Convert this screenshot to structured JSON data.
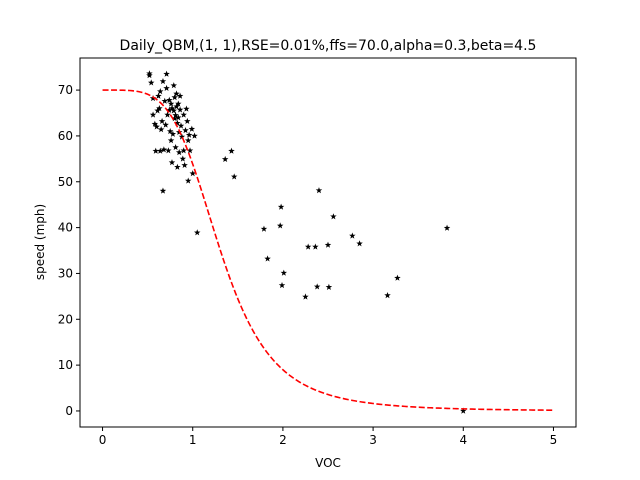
{
  "chart_data": {
    "type": "scatter",
    "title": "Daily_QBM,(1, 1),RSE=0.01%,ffs=70.0,alpha=0.3,beta=4.5",
    "xlabel": "VOC",
    "ylabel": "speed (mph)",
    "xlim": [
      -0.25,
      5.25
    ],
    "ylim": [
      -3.5,
      77.0
    ],
    "xticks": [
      0,
      1,
      2,
      3,
      4,
      5
    ],
    "yticks": [
      0,
      10,
      20,
      30,
      40,
      50,
      60,
      70
    ],
    "grid": false,
    "series": [
      {
        "kind": "scatter",
        "marker": "star",
        "color": "#000000",
        "points": [
          [
            0.52,
            73.6
          ],
          [
            0.52,
            73.2
          ],
          [
            0.54,
            71.6
          ],
          [
            0.56,
            68.2
          ],
          [
            0.56,
            64.6
          ],
          [
            0.58,
            62.6
          ],
          [
            0.59,
            56.7
          ],
          [
            0.6,
            62.0
          ],
          [
            0.61,
            65.5
          ],
          [
            0.62,
            68.7
          ],
          [
            0.63,
            66.0
          ],
          [
            0.64,
            69.7
          ],
          [
            0.64,
            56.7
          ],
          [
            0.65,
            61.4
          ],
          [
            0.66,
            63.2
          ],
          [
            0.67,
            71.9
          ],
          [
            0.67,
            48.0
          ],
          [
            0.68,
            57.0
          ],
          [
            0.69,
            67.6
          ],
          [
            0.7,
            62.4
          ],
          [
            0.71,
            70.4
          ],
          [
            0.71,
            73.5
          ],
          [
            0.72,
            64.6
          ],
          [
            0.73,
            56.8
          ],
          [
            0.74,
            67.8
          ],
          [
            0.74,
            65.6
          ],
          [
            0.75,
            61.0
          ],
          [
            0.76,
            67.0
          ],
          [
            0.76,
            59.0
          ],
          [
            0.77,
            54.2
          ],
          [
            0.77,
            66.0
          ],
          [
            0.78,
            60.4
          ],
          [
            0.79,
            65.5
          ],
          [
            0.79,
            71.0
          ],
          [
            0.8,
            68.4
          ],
          [
            0.8,
            63.8
          ],
          [
            0.81,
            64.5
          ],
          [
            0.81,
            57.5
          ],
          [
            0.82,
            66.4
          ],
          [
            0.82,
            69.2
          ],
          [
            0.83,
            53.2
          ],
          [
            0.83,
            62.8
          ],
          [
            0.84,
            67.0
          ],
          [
            0.84,
            64.0
          ],
          [
            0.85,
            60.8
          ],
          [
            0.85,
            56.4
          ],
          [
            0.86,
            68.7
          ],
          [
            0.86,
            65.7
          ],
          [
            0.87,
            62.2
          ],
          [
            0.88,
            59.8
          ],
          [
            0.89,
            55.0
          ],
          [
            0.9,
            56.8
          ],
          [
            0.9,
            64.6
          ],
          [
            0.91,
            53.6
          ],
          [
            0.92,
            61.2
          ],
          [
            0.93,
            65.9
          ],
          [
            0.94,
            63.2
          ],
          [
            0.95,
            59.0
          ],
          [
            0.95,
            50.2
          ],
          [
            0.96,
            60.2
          ],
          [
            0.97,
            56.8
          ],
          [
            0.99,
            61.5
          ],
          [
            1.0,
            51.8
          ],
          [
            1.02,
            60.0
          ],
          [
            1.05,
            38.9
          ],
          [
            1.36,
            54.9
          ],
          [
            1.43,
            56.7
          ],
          [
            1.46,
            51.1
          ],
          [
            1.79,
            39.7
          ],
          [
            1.83,
            33.2
          ],
          [
            1.97,
            40.4
          ],
          [
            1.98,
            44.5
          ],
          [
            1.99,
            27.4
          ],
          [
            2.01,
            30.1
          ],
          [
            2.25,
            24.9
          ],
          [
            2.28,
            35.8
          ],
          [
            2.36,
            35.8
          ],
          [
            2.38,
            27.1
          ],
          [
            2.4,
            48.1
          ],
          [
            2.5,
            36.2
          ],
          [
            2.51,
            27.0
          ],
          [
            2.56,
            42.4
          ],
          [
            2.77,
            38.2
          ],
          [
            2.85,
            36.5
          ],
          [
            3.16,
            25.2
          ],
          [
            3.27,
            29.0
          ],
          [
            3.82,
            39.9
          ],
          [
            4.0,
            0.0
          ]
        ]
      },
      {
        "kind": "line",
        "style": "dashed",
        "color": "#ff0000",
        "function": "qbm",
        "ffs": 70.0,
        "alpha": 0.3,
        "beta": 4.5,
        "x_range": [
          0,
          5
        ]
      }
    ]
  }
}
